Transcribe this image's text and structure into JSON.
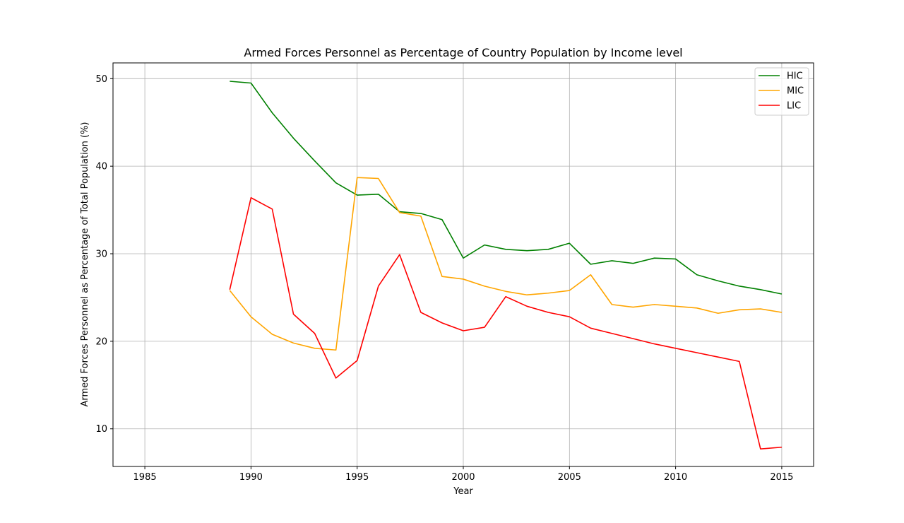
{
  "chart_data": {
    "type": "line",
    "title": "Armed Forces Personnel as Percentage of Country Population by Income level",
    "xlabel": "Year",
    "ylabel": "Armed Forces Personnel as Percentage of Total Population (%)",
    "xlim": [
      1983.5,
      2016.5
    ],
    "ylim": [
      5.7,
      51.8
    ],
    "xticks": [
      1985,
      1990,
      1995,
      2000,
      2005,
      2010,
      2015
    ],
    "yticks": [
      10,
      20,
      30,
      40,
      50
    ],
    "grid": true,
    "legend_position": "top-right",
    "x": [
      1989,
      1990,
      1991,
      1992,
      1993,
      1994,
      1995,
      1996,
      1997,
      1998,
      1999,
      2000,
      2001,
      2002,
      2003,
      2004,
      2005,
      2006,
      2007,
      2008,
      2009,
      2010,
      2011,
      2012,
      2013,
      2014,
      2015
    ],
    "series": [
      {
        "name": "HIC",
        "color": "#008000",
        "values": [
          49.7,
          49.5,
          46.1,
          43.2,
          40.6,
          38.1,
          36.7,
          36.8,
          34.8,
          34.6,
          33.9,
          29.5,
          31.0,
          30.5,
          30.35,
          30.5,
          31.2,
          28.8,
          29.2,
          28.9,
          29.5,
          29.4,
          27.6,
          26.9,
          26.3,
          25.9,
          25.4
        ]
      },
      {
        "name": "MIC",
        "color": "#FFA500",
        "values": [
          25.8,
          22.8,
          20.8,
          19.8,
          19.2,
          19.0,
          38.7,
          38.6,
          34.7,
          34.3,
          27.4,
          27.1,
          26.3,
          25.7,
          25.3,
          25.5,
          25.8,
          27.6,
          24.2,
          23.9,
          24.2,
          24.0,
          23.8,
          23.2,
          23.6,
          23.7,
          23.3
        ]
      },
      {
        "name": "LIC",
        "color": "#FF0000",
        "values": [
          25.9,
          36.4,
          35.1,
          23.1,
          20.9,
          15.8,
          17.8,
          26.3,
          29.9,
          23.3,
          22.1,
          21.2,
          21.6,
          25.1,
          24.0,
          23.3,
          22.8,
          21.5,
          20.9,
          20.3,
          19.7,
          19.2,
          18.7,
          18.2,
          17.7,
          7.7,
          7.9
        ]
      }
    ]
  }
}
